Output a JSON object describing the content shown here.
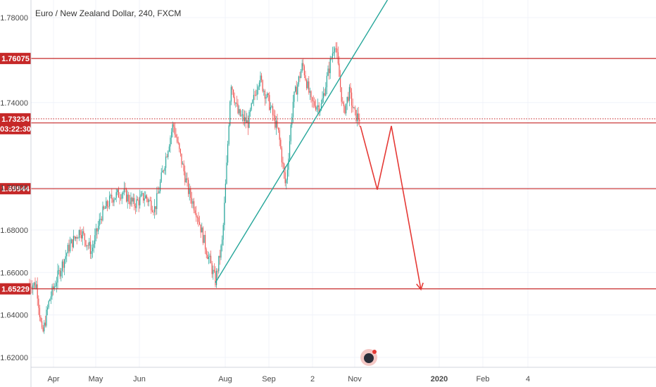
{
  "header": {
    "title": "Euro / New Zealand Dollar, 240, FXCM"
  },
  "colors": {
    "bull": "#26a69a",
    "bear": "#ef5350",
    "level": "#c62828",
    "trendline": "#26a69a",
    "projection": "#e53935",
    "grid": "#f0f3fa",
    "axis_text": "#4a4a4a"
  },
  "chart_data": {
    "type": "candlestick",
    "y_ticks": [
      "1.78000",
      "1.74000",
      "1.70000",
      "1.68000",
      "1.66000",
      "1.64000",
      "1.62000"
    ],
    "x_ticks": [
      "Apr",
      "May",
      "Jun",
      "Aug",
      "Sep",
      "2",
      "Nov",
      "2020",
      "Feb",
      "4"
    ],
    "ylim": [
      1.615,
      1.79
    ],
    "horizontal_levels": [
      {
        "name": "level-1-76075",
        "price": 1.76075,
        "label": "1.76075"
      },
      {
        "name": "level-1-73042",
        "price": 1.73042,
        "label": "1.73042"
      },
      {
        "name": "level-1-69944",
        "price": 1.69944,
        "label": "1.69944"
      },
      {
        "name": "level-1-65229",
        "price": 1.65229,
        "label": "1.65229"
      }
    ],
    "last_price": {
      "price": 1.73234,
      "label": "1.73234",
      "countdown": "03:22:30"
    },
    "trendline": {
      "from": [
        "Jul 25",
        1.6552
      ],
      "to": [
        "Dec 5",
        1.8
      ]
    },
    "projection": [
      [
        "Nov 5",
        1.729
      ],
      [
        "Nov 17",
        1.699
      ],
      [
        "Nov 27",
        1.729
      ],
      [
        "Dec 18",
        1.652
      ]
    ],
    "price_path": [
      [
        "Mar 15",
        1.655
      ],
      [
        "Mar 20",
        1.654
      ],
      [
        "Mar 24",
        1.63
      ],
      [
        "Mar 29",
        1.647
      ],
      [
        "Apr 5",
        1.66
      ],
      [
        "Apr 12",
        1.672
      ],
      [
        "Apr 20",
        1.68
      ],
      [
        "Apr 28",
        1.67
      ],
      [
        "May 5",
        1.687
      ],
      [
        "May 12",
        1.695
      ],
      [
        "May 20",
        1.698
      ],
      [
        "May 28",
        1.692
      ],
      [
        "Jun 5",
        1.696
      ],
      [
        "Jun 12",
        1.69
      ],
      [
        "Jun 20",
        1.715
      ],
      [
        "Jun 25",
        1.73
      ],
      [
        "Jun 30",
        1.715
      ],
      [
        "Jul 6",
        1.698
      ],
      [
        "Jul 12",
        1.688
      ],
      [
        "Jul 18",
        1.672
      ],
      [
        "Jul 25",
        1.656
      ],
      [
        "Jul 30",
        1.675
      ],
      [
        "Aug 2",
        1.71
      ],
      [
        "Aug 5",
        1.75
      ],
      [
        "Aug 10",
        1.735
      ],
      [
        "Aug 17",
        1.73
      ],
      [
        "Aug 25",
        1.752
      ],
      [
        "Sep 1",
        1.74
      ],
      [
        "Sep 8",
        1.725
      ],
      [
        "Sep 13",
        1.7
      ],
      [
        "Sep 18",
        1.74
      ],
      [
        "Sep 25",
        1.758
      ],
      [
        "Oct 1",
        1.74
      ],
      [
        "Oct 8",
        1.738
      ],
      [
        "Oct 15",
        1.76
      ],
      [
        "Oct 18",
        1.769
      ],
      [
        "Oct 24",
        1.735
      ],
      [
        "Oct 28",
        1.745
      ],
      [
        "Nov 1",
        1.734
      ],
      [
        "Nov 5",
        1.7323
      ]
    ]
  }
}
